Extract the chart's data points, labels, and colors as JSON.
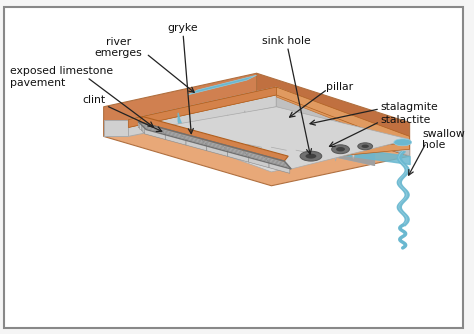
{
  "labels": {
    "sink_hole": "sink hole",
    "gryke": "gryke",
    "exposed_limestone": "exposed limestone\npavement",
    "clint": "clint",
    "swallow_hole": "swallow\nhole",
    "stalactite": "stalactite",
    "stalagmite": "stalagmite",
    "pillar": "pillar",
    "river_emerges": "river\nemerges"
  },
  "colors": {
    "background": "#f5f5f5",
    "border": "#888888",
    "limestone_top": "#dcdcdc",
    "limestone_front": "#c8c8c8",
    "limestone_right": "#bebebe",
    "orange_layer": "#d4824a",
    "orange_light": "#e09a60",
    "base_top": "#c8784a",
    "base_front": "#b86838",
    "base_right": "#a05828",
    "water_blue": "#6ab8d0",
    "water_light": "#90cce0",
    "cave_dark": "#a8a8a8",
    "cave_inner": "#888888",
    "clint_top": "#e0e0e0",
    "clint_side": "#c0c0c0",
    "clint_edge": "#909090",
    "sinkhole_color": "#787878",
    "text_color": "#111111",
    "arrow_color": "#222222",
    "crack_color": "#999999"
  }
}
